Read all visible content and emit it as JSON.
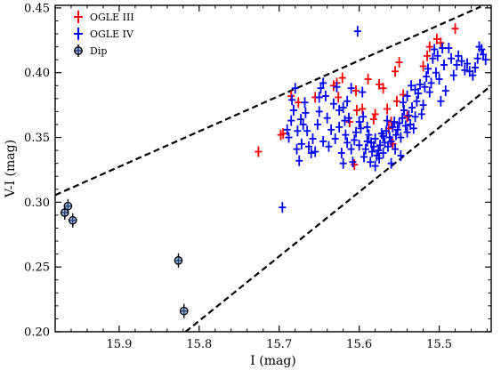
{
  "chart_data": {
    "type": "scatter",
    "title": "",
    "xlabel": "I (mag)",
    "ylabel": "V-I (mag)",
    "x_inverted": true,
    "xlim": [
      15.98,
      15.435
    ],
    "ylim": [
      0.2,
      0.452
    ],
    "xticks": [
      15.9,
      15.8,
      15.7,
      15.6,
      15.5
    ],
    "xtick_labels": [
      "15.9",
      "15.8",
      "15.7",
      "15.6",
      "15.5"
    ],
    "yticks": [
      0.2,
      0.25,
      0.3,
      0.35,
      0.4,
      0.45
    ],
    "ytick_labels": [
      "0.20",
      "0.25",
      "0.30",
      "0.35",
      "0.40",
      "0.45"
    ],
    "grid": false,
    "legend_position": "top-left",
    "series": [
      {
        "name": "OGLE III",
        "color": "#ff0000",
        "marker": "errorbar",
        "points": [
          [
            15.726,
            0.339
          ],
          [
            15.698,
            0.352
          ],
          [
            15.695,
            0.353
          ],
          [
            15.685,
            0.382
          ],
          [
            15.676,
            0.377
          ],
          [
            15.655,
            0.381
          ],
          [
            15.632,
            0.39
          ],
          [
            15.628,
            0.392
          ],
          [
            15.626,
            0.381
          ],
          [
            15.621,
            0.396
          ],
          [
            15.612,
            0.362
          ],
          [
            15.606,
            0.329
          ],
          [
            15.604,
            0.386
          ],
          [
            15.603,
            0.371
          ],
          [
            15.596,
            0.372
          ],
          [
            15.589,
            0.395
          ],
          [
            15.582,
            0.364
          ],
          [
            15.58,
            0.368
          ],
          [
            15.575,
            0.391
          ],
          [
            15.57,
            0.388
          ],
          [
            15.565,
            0.372
          ],
          [
            15.563,
            0.357
          ],
          [
            15.56,
            0.362
          ],
          [
            15.558,
            0.345
          ],
          [
            15.555,
            0.401
          ],
          [
            15.553,
            0.378
          ],
          [
            15.55,
            0.408
          ],
          [
            15.545,
            0.383
          ],
          [
            15.54,
            0.366
          ],
          [
            15.52,
            0.405
          ],
          [
            15.515,
            0.413
          ],
          [
            15.512,
            0.42
          ],
          [
            15.503,
            0.426
          ],
          [
            15.498,
            0.423
          ],
          [
            15.48,
            0.434
          ]
        ]
      },
      {
        "name": "OGLE IV",
        "color": "#0000ff",
        "marker": "errorbar",
        "points": [
          [
            15.696,
            0.296
          ],
          [
            15.688,
            0.35
          ],
          [
            15.685,
            0.363
          ],
          [
            15.684,
            0.379
          ],
          [
            15.682,
            0.371
          ],
          [
            15.68,
            0.388
          ],
          [
            15.678,
            0.341
          ],
          [
            15.677,
            0.355
          ],
          [
            15.675,
            0.332
          ],
          [
            15.673,
            0.364
          ],
          [
            15.672,
            0.345
          ],
          [
            15.67,
            0.36
          ],
          [
            15.668,
            0.377
          ],
          [
            15.667,
            0.369
          ],
          [
            15.665,
            0.355
          ],
          [
            15.663,
            0.343
          ],
          [
            15.66,
            0.338
          ],
          [
            15.658,
            0.349
          ],
          [
            15.655,
            0.339
          ],
          [
            15.652,
            0.36
          ],
          [
            15.65,
            0.37
          ],
          [
            15.648,
            0.388
          ],
          [
            15.645,
            0.392
          ],
          [
            15.642,
            0.382
          ],
          [
            15.64,
            0.365
          ],
          [
            15.638,
            0.343
          ],
          [
            15.635,
            0.356
          ],
          [
            15.632,
            0.376
          ],
          [
            15.628,
            0.389
          ],
          [
            15.625,
            0.358
          ],
          [
            15.622,
            0.338
          ],
          [
            15.62,
            0.373
          ],
          [
            15.618,
            0.363
          ],
          [
            15.617,
            0.352
          ],
          [
            15.615,
            0.378
          ],
          [
            15.613,
            0.365
          ],
          [
            15.61,
            0.388
          ],
          [
            15.608,
            0.331
          ],
          [
            15.606,
            0.348
          ],
          [
            15.604,
            0.354
          ],
          [
            15.602,
            0.432
          ],
          [
            15.6,
            0.344
          ],
          [
            15.598,
            0.357
          ],
          [
            15.596,
            0.385
          ],
          [
            15.594,
            0.335
          ],
          [
            15.592,
            0.341
          ],
          [
            15.59,
            0.347
          ],
          [
            15.588,
            0.352
          ],
          [
            15.586,
            0.331
          ],
          [
            15.584,
            0.339
          ],
          [
            15.582,
            0.343
          ],
          [
            15.58,
            0.349
          ],
          [
            15.578,
            0.336
          ],
          [
            15.576,
            0.34
          ],
          [
            15.574,
            0.344
          ],
          [
            15.572,
            0.353
          ],
          [
            15.57,
            0.338
          ],
          [
            15.568,
            0.346
          ],
          [
            15.566,
            0.355
          ],
          [
            15.564,
            0.343
          ],
          [
            15.562,
            0.35
          ],
          [
            15.56,
            0.347
          ],
          [
            15.558,
            0.358
          ],
          [
            15.556,
            0.362
          ],
          [
            15.554,
            0.352
          ],
          [
            15.552,
            0.356
          ],
          [
            15.55,
            0.361
          ],
          [
            15.548,
            0.35
          ],
          [
            15.546,
            0.365
          ],
          [
            15.544,
            0.371
          ],
          [
            15.542,
            0.359
          ],
          [
            15.54,
            0.354
          ],
          [
            15.538,
            0.367
          ],
          [
            15.536,
            0.36
          ],
          [
            15.534,
            0.373
          ],
          [
            15.532,
            0.357
          ],
          [
            15.53,
            0.366
          ],
          [
            15.528,
            0.378
          ],
          [
            15.526,
            0.384
          ],
          [
            15.524,
            0.391
          ],
          [
            15.522,
            0.368
          ],
          [
            15.52,
            0.375
          ],
          [
            15.518,
            0.389
          ],
          [
            15.516,
            0.397
          ],
          [
            15.514,
            0.403
          ],
          [
            15.512,
            0.385
          ],
          [
            15.51,
            0.392
          ],
          [
            15.508,
            0.411
          ],
          [
            15.506,
            0.418
          ],
          [
            15.504,
            0.4
          ],
          [
            15.502,
            0.413
          ],
          [
            15.5,
            0.395
          ],
          [
            15.498,
            0.378
          ],
          [
            15.496,
            0.419
          ],
          [
            15.494,
            0.406
          ],
          [
            15.492,
            0.386
          ],
          [
            15.488,
            0.419
          ],
          [
            15.485,
            0.411
          ],
          [
            15.482,
            0.398
          ],
          [
            15.478,
            0.406
          ],
          [
            15.476,
            0.413
          ],
          [
            15.472,
            0.409
          ],
          [
            15.468,
            0.402
          ],
          [
            15.465,
            0.407
          ],
          [
            15.462,
            0.401
          ],
          [
            15.458,
            0.398
          ],
          [
            15.455,
            0.404
          ],
          [
            15.452,
            0.411
          ],
          [
            15.45,
            0.42
          ],
          [
            15.447,
            0.418
          ],
          [
            15.445,
            0.414
          ],
          [
            15.442,
            0.41
          ],
          [
            15.57,
            0.351
          ],
          [
            15.575,
            0.334
          ],
          [
            15.58,
            0.328
          ],
          [
            15.585,
            0.346
          ],
          [
            15.59,
            0.358
          ],
          [
            15.565,
            0.363
          ],
          [
            15.56,
            0.33
          ],
          [
            15.555,
            0.341
          ],
          [
            15.548,
            0.336
          ],
          [
            15.545,
            0.377
          ],
          [
            15.54,
            0.382
          ],
          [
            15.535,
            0.39
          ],
          [
            15.53,
            0.387
          ],
          [
            15.61,
            0.341
          ],
          [
            15.62,
            0.33
          ],
          [
            15.63,
            0.349
          ],
          [
            15.6,
            0.362
          ],
          [
            15.595,
            0.366
          ],
          [
            15.69,
            0.356
          ],
          [
            15.65,
            0.381
          ],
          [
            15.645,
            0.347
          ],
          [
            15.625,
            0.371
          ],
          [
            15.615,
            0.346
          ]
        ]
      },
      {
        "name": "Dip",
        "color": "#000000",
        "marker": "circle-cross",
        "points": [
          [
            15.968,
            0.292
          ],
          [
            15.964,
            0.297
          ],
          [
            15.958,
            0.286
          ],
          [
            15.826,
            0.255
          ],
          [
            15.819,
            0.216
          ]
        ]
      }
    ],
    "reference_lines": [
      {
        "style": "dashed",
        "color": "#000000",
        "points": [
          [
            15.98,
            0.3055
          ],
          [
            15.448,
            0.451
          ]
        ]
      },
      {
        "style": "dashed",
        "color": "#000000",
        "points": [
          [
            15.817,
            0.2
          ],
          [
            15.435,
            0.39
          ]
        ]
      }
    ]
  }
}
